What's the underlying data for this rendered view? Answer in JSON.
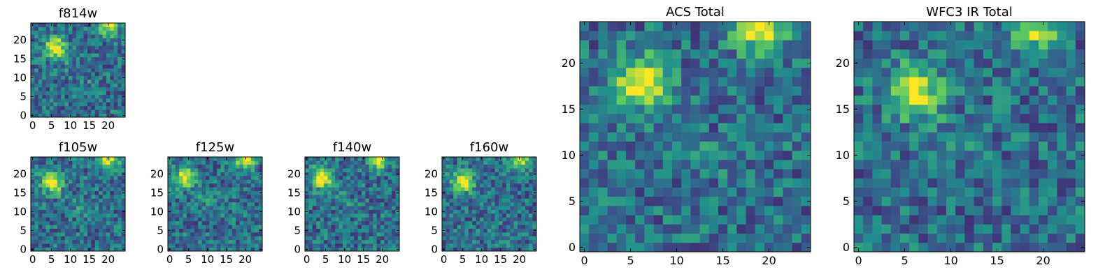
{
  "chart_data": [
    {
      "type": "heatmap",
      "title": "f814w",
      "xticks": [
        0,
        5,
        10,
        15,
        20
      ],
      "yticks": [
        0,
        5,
        10,
        15,
        20
      ],
      "xlim": [
        -0.5,
        24.5
      ],
      "ylim": [
        -0.5,
        24.5
      ],
      "grid": false,
      "size": [
        25,
        25
      ],
      "bright_blobs": [
        {
          "x": 6,
          "y": 18,
          "level": 1.0
        },
        {
          "x": 20,
          "y": 24,
          "level": 0.95
        }
      ]
    },
    {
      "type": "heatmap",
      "title": "f105w",
      "xticks": [
        0,
        5,
        10,
        15,
        20
      ],
      "yticks": [
        0,
        5,
        10,
        15,
        20
      ],
      "xlim": [
        -0.5,
        24.5
      ],
      "ylim": [
        -0.5,
        24.5
      ],
      "grid": false,
      "size": [
        25,
        25
      ],
      "bright_blobs": [
        {
          "x": 5,
          "y": 18,
          "level": 1.0
        },
        {
          "x": 20,
          "y": 24,
          "level": 0.9
        }
      ]
    },
    {
      "type": "heatmap",
      "title": "f125w",
      "xticks": [
        0,
        5,
        10,
        15,
        20
      ],
      "yticks": [
        0,
        5,
        10,
        15,
        20
      ],
      "xlim": [
        -0.5,
        24.5
      ],
      "ylim": [
        -0.5,
        24.5
      ],
      "grid": false,
      "size": [
        25,
        25
      ],
      "bright_blobs": [
        {
          "x": 4,
          "y": 19,
          "level": 1.0
        },
        {
          "x": 20,
          "y": 24,
          "level": 0.9
        }
      ]
    },
    {
      "type": "heatmap",
      "title": "f140w",
      "xticks": [
        0,
        5,
        10,
        15,
        20
      ],
      "yticks": [
        0,
        5,
        10,
        15,
        20
      ],
      "xlim": [
        -0.5,
        24.5
      ],
      "ylim": [
        -0.5,
        24.5
      ],
      "grid": false,
      "size": [
        25,
        25
      ],
      "bright_blobs": [
        {
          "x": 4,
          "y": 19,
          "level": 1.0
        },
        {
          "x": 19,
          "y": 24,
          "level": 0.9
        }
      ]
    },
    {
      "type": "heatmap",
      "title": "f160w",
      "xticks": [
        0,
        5,
        10,
        15,
        20
      ],
      "yticks": [
        0,
        5,
        10,
        15,
        20
      ],
      "xlim": [
        -0.5,
        24.5
      ],
      "ylim": [
        -0.5,
        24.5
      ],
      "grid": false,
      "size": [
        25,
        25
      ],
      "bright_blobs": [
        {
          "x": 5,
          "y": 18,
          "level": 1.0
        },
        {
          "x": 20,
          "y": 24,
          "level": 0.9
        }
      ]
    },
    {
      "type": "heatmap",
      "title": "ACS Total",
      "xticks": [
        0,
        5,
        10,
        15,
        20
      ],
      "yticks": [
        0,
        5,
        10,
        15,
        20
      ],
      "xlim": [
        -0.5,
        24.5
      ],
      "ylim": [
        -0.5,
        24.5
      ],
      "grid": false,
      "size": [
        25,
        25
      ],
      "bright_blobs": [
        {
          "x": 6,
          "y": 18,
          "level": 1.0
        },
        {
          "x": 19,
          "y": 24,
          "level": 1.0
        }
      ]
    },
    {
      "type": "heatmap",
      "title": "WFC3 IR Total",
      "xticks": [
        0,
        5,
        10,
        15,
        20
      ],
      "yticks": [
        0,
        5,
        10,
        15,
        20
      ],
      "xlim": [
        -0.5,
        24.5
      ],
      "ylim": [
        -0.5,
        24.5
      ],
      "grid": false,
      "size": [
        25,
        25
      ],
      "bright_blobs": [
        {
          "x": 6,
          "y": 17,
          "level": 1.0
        },
        {
          "x": 19,
          "y": 24,
          "level": 0.85
        }
      ]
    }
  ],
  "colormap": [
    "#440154",
    "#3b528b",
    "#21918c",
    "#5ec962",
    "#fde725"
  ]
}
